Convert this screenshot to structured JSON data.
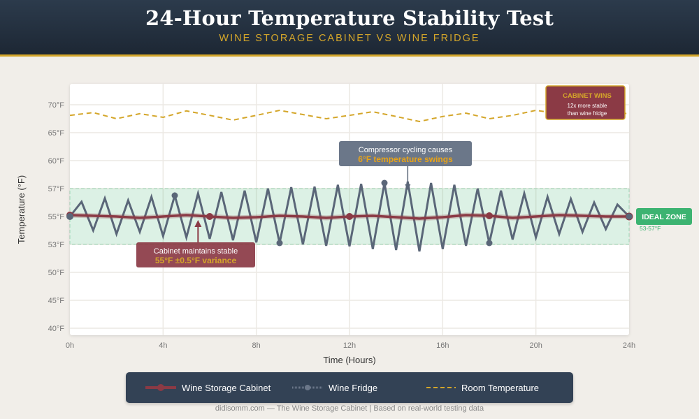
{
  "header": {
    "title": "24-Hour Temperature Stability Test",
    "subtitle": "WINE STORAGE CABINET VS WINE FRIDGE"
  },
  "chart_data": {
    "type": "line",
    "xlabel": "Time (Hours)",
    "ylabel": "Temperature (°F)",
    "x_ticks": [
      "0h",
      "4h",
      "8h",
      "12h",
      "16h",
      "20h",
      "24h"
    ],
    "x_tick_values": [
      0,
      4,
      8,
      12,
      16,
      20,
      24
    ],
    "xlim": [
      0,
      24
    ],
    "y_ticks": [
      "70°F",
      "65°F",
      "60°F",
      "57°F",
      "55°F",
      "53°F",
      "50°F",
      "45°F",
      "40°F"
    ],
    "y_tick_values": [
      70,
      65,
      60,
      57,
      55,
      53,
      50,
      45,
      40
    ],
    "y_axis_note": "tick labels evenly spaced (non-linear scale)",
    "grid": true,
    "series": [
      {
        "name": "Wine Storage Cabinet",
        "color": "#8b3a45",
        "x": [
          0,
          1,
          2,
          3,
          4,
          5,
          6,
          7,
          8,
          9,
          10,
          11,
          12,
          13,
          14,
          15,
          16,
          17,
          18,
          19,
          20,
          21,
          22,
          23,
          24
        ],
        "values": [
          55.1,
          55.05,
          55.0,
          54.9,
          55.0,
          55.1,
          55.0,
          54.9,
          54.95,
          55.05,
          55.0,
          54.9,
          55.0,
          55.05,
          54.95,
          54.85,
          54.95,
          55.1,
          55.05,
          54.9,
          55.0,
          55.1,
          55.05,
          55.0,
          55.0
        ],
        "markers_at": [
          0,
          6,
          12,
          18,
          24
        ]
      },
      {
        "name": "Wine Fridge",
        "color": "#5a6678",
        "x": [
          0,
          0.5,
          1,
          1.5,
          2,
          2.5,
          3,
          3.5,
          4,
          4.5,
          5,
          5.5,
          6,
          6.5,
          7,
          7.5,
          8,
          8.5,
          9,
          9.5,
          10,
          10.5,
          11,
          11.5,
          12,
          12.5,
          13,
          13.5,
          14,
          14.5,
          15,
          15.5,
          16,
          16.5,
          17,
          17.5,
          18,
          18.5,
          19,
          19.5,
          20,
          20.5,
          21,
          21.5,
          22,
          22.5,
          23,
          23.5,
          24
        ],
        "values": [
          55,
          56.05,
          54.0,
          56.3,
          53.75,
          56.15,
          53.9,
          56.4,
          53.6,
          56.5,
          53.5,
          56.65,
          53.4,
          56.75,
          53.3,
          56.85,
          53.15,
          57.0,
          53.1,
          57.15,
          53.0,
          57.2,
          52.85,
          57.4,
          52.8,
          57.5,
          52.5,
          57.6,
          52.4,
          57.75,
          52.25,
          57.6,
          52.5,
          57.4,
          52.85,
          57.0,
          53.1,
          56.85,
          53.35,
          56.65,
          53.5,
          56.4,
          53.75,
          56.25,
          53.9,
          56.0,
          54.1,
          55.85,
          55.0
        ],
        "markers_at": [
          0,
          4.5,
          9,
          13.5,
          18,
          24
        ]
      },
      {
        "name": "Room Temperature",
        "color": "#d4a62a",
        "style": "dashed",
        "x": [
          0,
          1,
          2,
          3,
          4,
          5,
          6,
          7,
          8,
          9,
          10,
          11,
          12,
          13,
          14,
          15,
          16,
          17,
          18,
          19,
          20,
          21,
          22,
          23,
          24
        ],
        "values": [
          68.1,
          68.6,
          67.5,
          68.4,
          67.75,
          68.9,
          68.1,
          67.25,
          68.1,
          69.0,
          68.25,
          67.5,
          68.1,
          68.75,
          67.9,
          67.0,
          67.9,
          68.5,
          67.5,
          68.1,
          69.0,
          68.4,
          67.4,
          68.1,
          68.5
        ]
      }
    ],
    "ideal_zone": {
      "range": [
        53,
        57
      ],
      "color": "#3cb371",
      "label": "IDEAL ZONE",
      "range_label": "53-57°F"
    },
    "annotations": {
      "cabinet": {
        "line1": "Cabinet maintains stable",
        "line2": "55°F ±0.5°F variance",
        "x": 5.5,
        "y": 55
      },
      "fridge": {
        "line1": "Compressor cycling causes",
        "line2": "6°F temperature swings",
        "x": 14.5,
        "y": 57
      },
      "winner": {
        "title": "CABINET WINS",
        "line1": "12x more stable",
        "line2": "than wine fridge"
      }
    },
    "legend_position": "bottom"
  },
  "legend": {
    "items": [
      "Wine Storage Cabinet",
      "Wine Fridge",
      "Room Temperature"
    ]
  },
  "footer": "didisomm.com — The Wine Storage Cabinet | Based on real-world testing data"
}
